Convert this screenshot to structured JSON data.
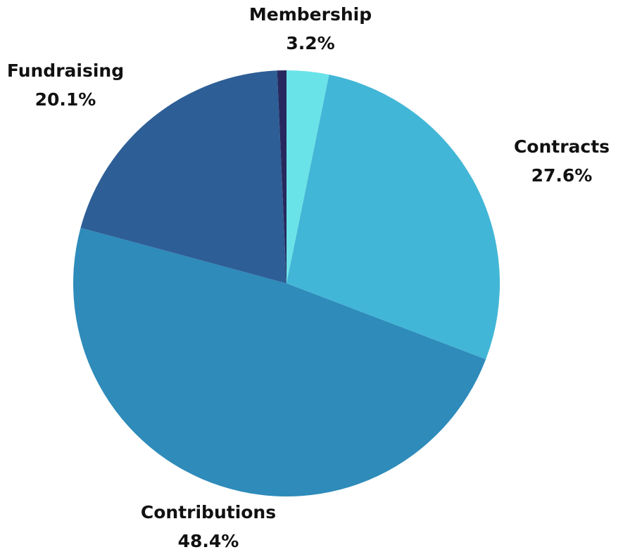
{
  "chart_data": {
    "type": "pie",
    "categories": [
      "Membership",
      "Contracts",
      "Contributions",
      "Fundraising",
      null
    ],
    "values": [
      3.2,
      27.6,
      48.4,
      20.1,
      0.7
    ],
    "value_labels": [
      "3.2%",
      "27.6%",
      "48.4%",
      "20.1%",
      null
    ],
    "colors": [
      "#6ae3e8",
      "#42b6d6",
      "#2e8bba",
      "#2e5e96",
      "#27295e"
    ]
  }
}
